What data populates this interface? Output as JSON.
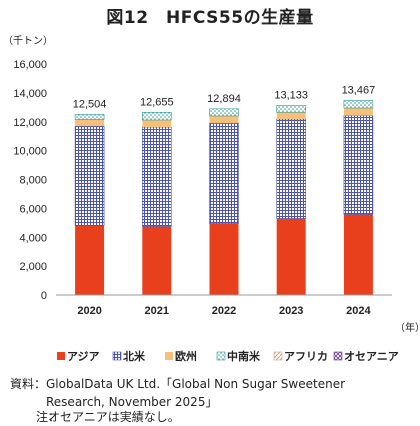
{
  "title": "図12　HFCS55の生産量",
  "source": {
    "label": "資料：",
    "lines": [
      "GlobalData UK Ltd.「Global Non Sugar Sweetener",
      "Research, November 2025」"
    ]
  },
  "note": {
    "label": "注：",
    "text": "オセアニアは実績なし。"
  },
  "chart_data": {
    "type": "bar",
    "stacked": true,
    "categories": [
      "2020",
      "2021",
      "2022",
      "2023",
      "2024"
    ],
    "totals": [
      "12,504",
      "12,655",
      "12,894",
      "13,133",
      "13,467"
    ],
    "y_unit_label": "（千トン）",
    "x_unit_label": "（年）",
    "ylim": [
      0,
      16000
    ],
    "yticks": [
      0,
      2000,
      4000,
      6000,
      8000,
      10000,
      12000,
      14000,
      16000
    ],
    "ytick_labels": [
      "0",
      "2,000",
      "4,000",
      "6,000",
      "8,000",
      "10,000",
      "12,000",
      "14,000",
      "16,000"
    ],
    "grid": false,
    "legend_position": "bottom",
    "series": [
      {
        "name": "アジア",
        "color": "#e8401c",
        "pattern": "solid",
        "values": [
          4800,
          4750,
          4950,
          5300,
          5580
        ]
      },
      {
        "name": "北米",
        "color": "#4b53b5",
        "pattern": "grid",
        "values": [
          6900,
          6880,
          6950,
          6890,
          6850
        ]
      },
      {
        "name": "欧州",
        "color": "#f5c17a",
        "pattern": "solid",
        "values": [
          460,
          490,
          500,
          470,
          520
        ]
      },
      {
        "name": "中南米",
        "color": "#2f9a96",
        "pattern": "dots",
        "values": [
          344,
          535,
          494,
          473,
          517
        ]
      },
      {
        "name": "アフリカ",
        "color": "#d2a27c",
        "pattern": "diag",
        "values": [
          0,
          0,
          0,
          0,
          0
        ]
      },
      {
        "name": "オセアニア",
        "color": "#6a3a86",
        "pattern": "cross",
        "values": [
          0,
          0,
          0,
          0,
          0
        ]
      }
    ]
  }
}
